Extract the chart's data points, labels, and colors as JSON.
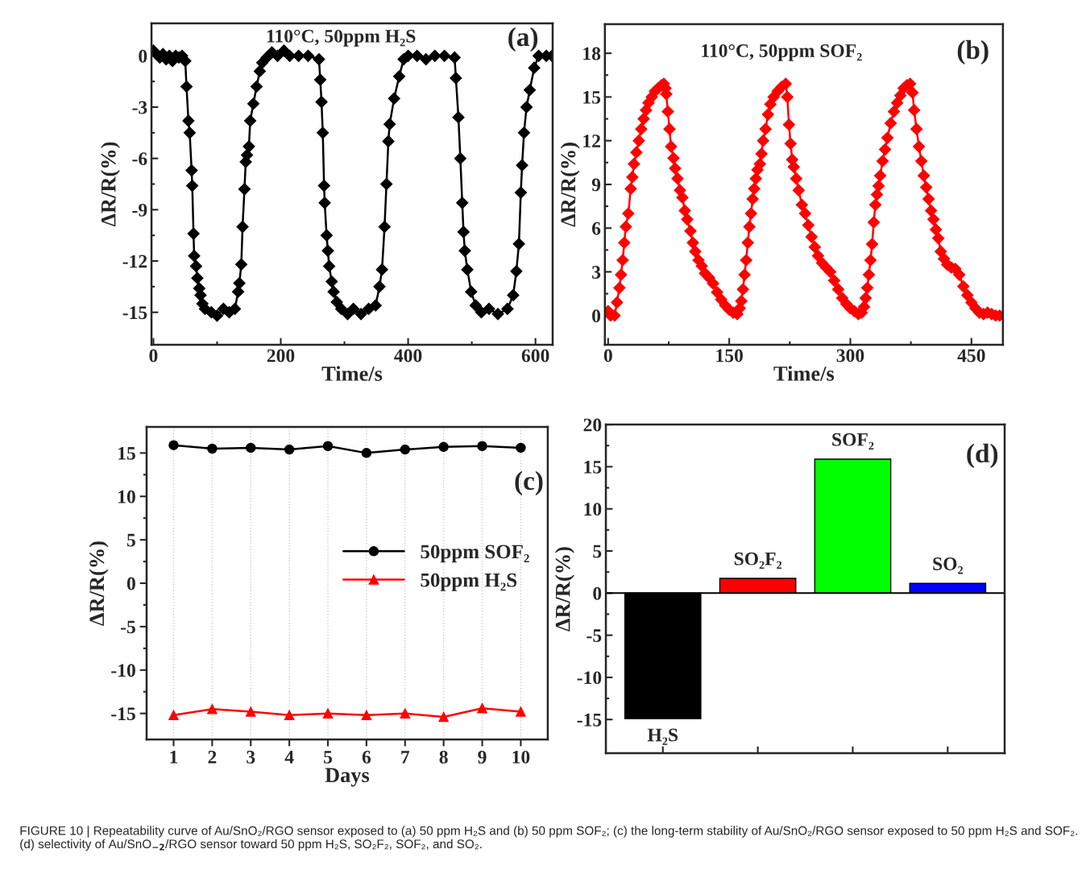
{
  "chart_data": [
    {
      "type": "line",
      "annotations": [
        "110°C, 50ppm H₂S",
        "(a)"
      ],
      "xlabel": "Time/s",
      "ylabel": "ΔR/R(%)",
      "xlim": [
        -3,
        627
      ],
      "ylim": [
        -16.9,
        1.9
      ],
      "xticks": [
        0,
        200,
        400,
        600
      ],
      "yticks": [
        -15,
        -12,
        -9,
        -6,
        -3,
        0
      ],
      "marker": "diamond",
      "line_style": "solid",
      "x": [
        0,
        5,
        10,
        15,
        20,
        25,
        30,
        35,
        40,
        45,
        50,
        52,
        55,
        57,
        60,
        61,
        63,
        64,
        67,
        69,
        72,
        74,
        77,
        81,
        91,
        100,
        110,
        119,
        128,
        133,
        135,
        138,
        140,
        143,
        145,
        147,
        150,
        152,
        157,
        162,
        167,
        171,
        178,
        186,
        195,
        205,
        214,
        228,
        243,
        260,
        262,
        264,
        266,
        268,
        269,
        272,
        274,
        276,
        280,
        283,
        288,
        295,
        305,
        314,
        326,
        338,
        349,
        355,
        359,
        363,
        366,
        369,
        371,
        378,
        386,
        393,
        400,
        414,
        428,
        442,
        457,
        473,
        475,
        479,
        482,
        485,
        487,
        489,
        493,
        499,
        506,
        515,
        527,
        541,
        556,
        565,
        570,
        574,
        577,
        579,
        582,
        586,
        591,
        598,
        605,
        617,
        626
      ],
      "series": [
        {
          "color": "#000000",
          "values": [
            0.3,
            0.1,
            -0.1,
            0.1,
            -0.2,
            0,
            -0.3,
            0,
            -0.1,
            0,
            -0.3,
            -1.8,
            -3.8,
            -4.5,
            -6.7,
            -7.6,
            -10.4,
            -11.7,
            -12.3,
            -13,
            -13.6,
            -14,
            -14.5,
            -14.8,
            -15,
            -15.2,
            -14.8,
            -15,
            -14.8,
            -13.8,
            -13.3,
            -12.2,
            -10,
            -7.8,
            -6.2,
            -5.8,
            -5.3,
            -3.8,
            -2.8,
            -1.8,
            -0.9,
            -0.4,
            -0.1,
            0.2,
            0,
            0.3,
            0,
            0,
            0,
            -0.2,
            -1.4,
            -2.7,
            -4.5,
            -7.6,
            -8.6,
            -10.5,
            -11.4,
            -12.3,
            -13.2,
            -13.8,
            -14.4,
            -14.8,
            -15.1,
            -14.8,
            -15.1,
            -14.8,
            -14.6,
            -13.5,
            -12.5,
            -10,
            -7.5,
            -5,
            -4,
            -2.5,
            -1.2,
            -0.2,
            0,
            0,
            -0.2,
            0,
            0,
            -0.1,
            -1.3,
            -3.6,
            -6,
            -8.6,
            -10.3,
            -11.4,
            -12.5,
            -13.8,
            -14.6,
            -15,
            -14.8,
            -15.1,
            -14.8,
            -14,
            -12.6,
            -11,
            -8,
            -6.4,
            -4.5,
            -3,
            -2,
            -0.7,
            0,
            0,
            0
          ]
        }
      ]
    },
    {
      "type": "line",
      "annotations": [
        "110°C, 50ppm SOF₂",
        "(b)"
      ],
      "xlabel": "Time/s",
      "ylabel": "ΔR/R(%)",
      "xlim": [
        -4,
        489
      ],
      "ylim": [
        -2,
        20
      ],
      "xticks": [
        0,
        150,
        300,
        450
      ],
      "yticks": [
        0,
        3,
        6,
        9,
        12,
        15,
        18
      ],
      "marker": "diamond",
      "line_style": "solid",
      "x": [
        0,
        3,
        8,
        11,
        14,
        16,
        18,
        20,
        22,
        25,
        28,
        30,
        32,
        35,
        38,
        41,
        44,
        47,
        50,
        54,
        58,
        62,
        66,
        69,
        71,
        72,
        74,
        76,
        78,
        81,
        83,
        86,
        89,
        92,
        95,
        98,
        102,
        105,
        108,
        112,
        116,
        120,
        125,
        130,
        135,
        140,
        145,
        150,
        155,
        160,
        163,
        165,
        167,
        169,
        171,
        173,
        175,
        177,
        179,
        181,
        183,
        185,
        188,
        190,
        192,
        195,
        198,
        201,
        205,
        210,
        215,
        220,
        222,
        224,
        226,
        228,
        230,
        233,
        236,
        240,
        244,
        248,
        252,
        256,
        260,
        265,
        270,
        275,
        280,
        285,
        290,
        295,
        300,
        305,
        310,
        314,
        317,
        319,
        321,
        323,
        325,
        327,
        329,
        331,
        333,
        335,
        337,
        340,
        343,
        346,
        350,
        354,
        358,
        362,
        366,
        370,
        374,
        377,
        379,
        382,
        385,
        388,
        391,
        394,
        397,
        400,
        403,
        406,
        409,
        412,
        416,
        420,
        425,
        430,
        435,
        440,
        445,
        450,
        455,
        460,
        465,
        470,
        475,
        480,
        485
      ],
      "series": [
        {
          "color": "#ff0000",
          "values": [
            0.3,
            0,
            0,
            0.9,
            1.9,
            2.8,
            3.8,
            5,
            6.1,
            7,
            8.7,
            9.5,
            10.4,
            11.2,
            12,
            12.8,
            13.5,
            14.1,
            14.6,
            15,
            15.4,
            15.6,
            15.8,
            15.9,
            15.6,
            15.2,
            14,
            12.8,
            11.6,
            10.8,
            10.1,
            9.4,
            8.6,
            8.1,
            7.2,
            6.6,
            5.8,
            5,
            4.4,
            3.8,
            3.4,
            2.9,
            2.6,
            2.2,
            1.6,
            1.1,
            0.7,
            0.4,
            0.2,
            0.1,
            0.5,
            1,
            1.8,
            2.8,
            3.8,
            5,
            6.1,
            7,
            8,
            8.7,
            9.4,
            10,
            10.4,
            11.1,
            12,
            12.8,
            13.8,
            14.5,
            15,
            15.4,
            15.7,
            15.9,
            15,
            13.1,
            11.8,
            10.7,
            10.2,
            9.4,
            8.6,
            7.6,
            7,
            6.2,
            5.4,
            4.7,
            4.1,
            3.6,
            3.3,
            3,
            2.4,
            1.8,
            1.2,
            0.8,
            0.5,
            0.3,
            0.1,
            0.2,
            0.6,
            1.2,
            1.9,
            2.8,
            3.8,
            4.9,
            6.4,
            7.6,
            8.3,
            8.9,
            9.6,
            10.6,
            11.4,
            12.2,
            13.2,
            14,
            14.6,
            15.1,
            15.6,
            15.8,
            15.9,
            15.3,
            14.1,
            12.8,
            11.6,
            10.6,
            9.6,
            8.8,
            8,
            7.2,
            6.6,
            5.9,
            5.3,
            4.4,
            3.9,
            3.5,
            3.3,
            3.2,
            2.8,
            2,
            1.4,
            0.9,
            0.5,
            0.2,
            0.1,
            0.2,
            0.1,
            0,
            0
          ]
        }
      ]
    },
    {
      "type": "line",
      "annotations": [
        "(c)"
      ],
      "xlabel": "Days",
      "ylabel": "ΔR/R(%)",
      "ylim": [
        -18,
        18
      ],
      "yticks": [
        -15,
        -10,
        -5,
        0,
        5,
        10,
        15
      ],
      "grid": "x",
      "legend": "right",
      "line_style": "solid",
      "categories": [
        "1",
        "2",
        "3",
        "4",
        "5",
        "6",
        "7",
        "8",
        "9",
        "10"
      ],
      "series": [
        {
          "name": "50ppm SOF₂",
          "color": "#000000",
          "marker": "circle",
          "values": [
            15.9,
            15.5,
            15.6,
            15.4,
            15.8,
            15.0,
            15.4,
            15.7,
            15.8,
            15.6
          ]
        },
        {
          "name": "50ppm H₂S",
          "color": "#ff0000",
          "marker": "triangle",
          "values": [
            -15.2,
            -14.5,
            -14.8,
            -15.2,
            -15.0,
            -15.2,
            -15.0,
            -15.4,
            -14.4,
            -14.8
          ]
        }
      ]
    },
    {
      "type": "bar",
      "annotations": [
        "(d)",
        "FIGURE 10 | Repeatability curve of Au/SnO₂/RGO sensor exposed to (a) 50 ppm H₂S and (b) 50 ppm SOF₂; (c) the long-term stability of Au/SnO₂/RGO sensor exposed to 50 ppm H₂S and SOF₂. (d) selectivity of Au/SnO$_{−2}$/RGO sensor toward 50 ppm H₂S, SO₂F₂, SOF₂, and SO₂."
      ],
      "ylabel": "ΔR/R(%)",
      "ylim": [
        -19,
        20
      ],
      "yticks": [
        -15,
        -10,
        -5,
        0,
        5,
        10,
        15,
        20
      ],
      "tick_labels": "y",
      "categories": [
        "H₂S",
        "SO₂F₂",
        "SOF₂",
        "SO₂"
      ],
      "values": [
        -14.9,
        1.75,
        15.9,
        1.15
      ],
      "colors": [
        "#000000",
        "#ff0000",
        "#00ff00",
        "#0000ff"
      ],
      "ref_lines": [
        {
          "axis": "y",
          "value": 0,
          "color": "#000000"
        }
      ]
    }
  ]
}
